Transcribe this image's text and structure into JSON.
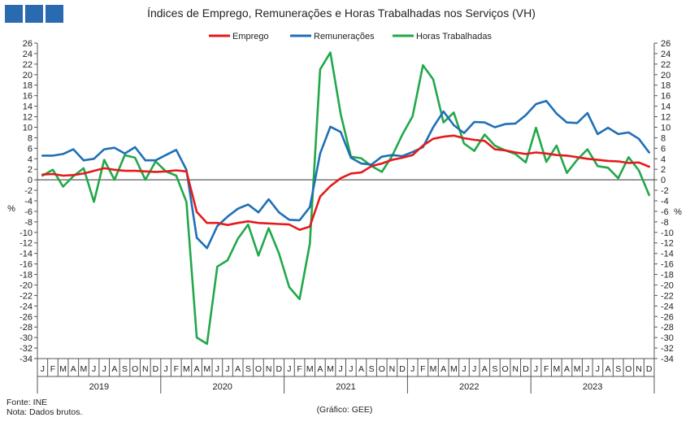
{
  "colors": {
    "logo": "#2a6ab1",
    "emprego": "#e41a1c",
    "remuneracoes": "#1f6fb5",
    "horas": "#21a84a"
  },
  "chart_data": {
    "type": "line",
    "title": "Índices de Emprego, Remunerações e Horas Trabalhadas nos Serviços (VH)",
    "ylabel_left": "%",
    "ylabel_right": "%",
    "ylim": [
      -34,
      26
    ],
    "yticks": [
      26,
      24,
      22,
      20,
      18,
      16,
      14,
      12,
      10,
      8,
      6,
      4,
      2,
      0,
      -2,
      -4,
      -6,
      -8,
      -10,
      -12,
      -14,
      -16,
      -18,
      -20,
      -22,
      -24,
      -26,
      -28,
      -30,
      -32,
      -34
    ],
    "grid": false,
    "legend_position": "top",
    "months": [
      "J",
      "F",
      "M",
      "A",
      "M",
      "J",
      "J",
      "A",
      "S",
      "O",
      "N",
      "D",
      "J",
      "F",
      "M",
      "A",
      "M",
      "J",
      "J",
      "A",
      "S",
      "O",
      "N",
      "D",
      "J",
      "F",
      "M",
      "A",
      "M",
      "J",
      "J",
      "A",
      "S",
      "O",
      "N",
      "D",
      "J",
      "F",
      "M",
      "A",
      "M",
      "J",
      "J",
      "A",
      "S",
      "O",
      "N",
      "D",
      "J",
      "F",
      "M",
      "A",
      "M",
      "J",
      "J",
      "A",
      "S",
      "O",
      "N",
      "D"
    ],
    "years": [
      "2019",
      "2020",
      "2021",
      "2022",
      "2023"
    ],
    "series": [
      {
        "name": "Emprego",
        "color": "#e41a1c",
        "values": [
          1.0,
          1.1,
          0.8,
          0.9,
          1.2,
          1.7,
          2.2,
          1.9,
          1.7,
          1.7,
          1.6,
          1.5,
          1.6,
          1.8,
          1.6,
          -6.1,
          -8.2,
          -8.2,
          -8.6,
          -8.2,
          -7.9,
          -8.2,
          -8.3,
          -8.4,
          -8.5,
          -9.5,
          -8.9,
          -3.2,
          -1.2,
          0.3,
          1.2,
          1.4,
          2.6,
          3.1,
          3.8,
          4.2,
          4.7,
          6.5,
          7.8,
          8.2,
          8.4,
          7.9,
          7.6,
          7.4,
          5.8,
          5.6,
          5.2,
          4.9,
          5.2,
          5.0,
          4.7,
          4.6,
          4.3,
          4.0,
          3.8,
          3.6,
          3.5,
          3.2,
          3.3,
          2.5
        ]
      },
      {
        "name": "Remunerações",
        "color": "#1f6fb5",
        "values": [
          4.6,
          4.6,
          4.9,
          5.8,
          3.7,
          4.0,
          5.8,
          6.1,
          5.0,
          6.2,
          3.7,
          3.7,
          4.7,
          5.7,
          1.9,
          -11.0,
          -13.0,
          -8.8,
          -7.0,
          -5.5,
          -4.7,
          -6.2,
          -3.7,
          -6.2,
          -7.6,
          -7.7,
          -5.2,
          5.0,
          10.1,
          9.1,
          4.2,
          3.1,
          2.9,
          4.4,
          4.7,
          4.5,
          5.3,
          6.2,
          10.0,
          13.0,
          10.4,
          8.9,
          11.0,
          10.9,
          10.0,
          10.6,
          10.7,
          12.3,
          14.4,
          15.0,
          12.6,
          10.9,
          10.8,
          12.7,
          8.7,
          9.9,
          8.7,
          9.0,
          7.8,
          5.2
        ]
      },
      {
        "name": "Horas Trabalhadas",
        "color": "#21a84a",
        "values": [
          0.8,
          1.9,
          -1.3,
          0.7,
          2.2,
          -4.2,
          3.8,
          0.0,
          4.7,
          4.2,
          0.0,
          3.5,
          1.6,
          0.8,
          -4.2,
          -30.0,
          -31.2,
          -16.5,
          -15.3,
          -11.2,
          -8.5,
          -14.4,
          -9.2,
          -14.0,
          -20.4,
          -22.7,
          -12.2,
          21.0,
          24.2,
          12.5,
          4.4,
          4.1,
          2.6,
          1.5,
          4.5,
          8.6,
          12.1,
          21.8,
          19.1,
          10.9,
          12.8,
          6.9,
          5.5,
          8.6,
          6.5,
          5.6,
          4.9,
          3.3,
          9.9,
          3.4,
          6.5,
          1.3,
          3.8,
          5.8,
          2.6,
          2.3,
          0.3,
          4.3,
          1.8,
          -2.9
        ]
      }
    ]
  },
  "footer": {
    "source": "Fonte: INE",
    "note": "Nota: Dados brutos.",
    "credit": "(Gráfico: GEE)"
  }
}
